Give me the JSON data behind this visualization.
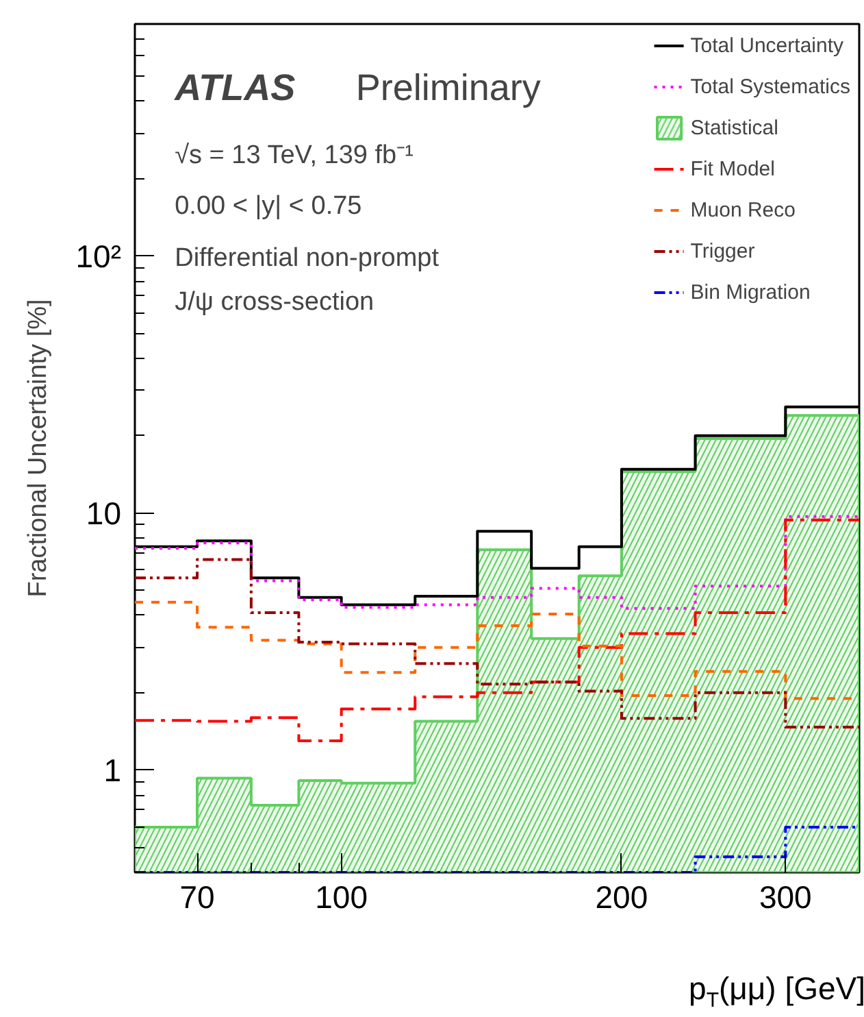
{
  "chart_data": {
    "type": "histogram",
    "xlabel": "p$_{T}$(μμ) [GeV]",
    "ylabel": "Fractional Uncertainty [%]",
    "annotations": [
      "ATLAS",
      "Preliminary",
      "√s = 13 TeV, 139 fb⁻¹",
      "0.00 < |y| < 0.75",
      "Differential non-prompt",
      "J/ψ cross-section"
    ],
    "bins": [
      60,
      70,
      80,
      90,
      100,
      120,
      140,
      160,
      180,
      200,
      240,
      300,
      360
    ],
    "log": "xy",
    "xlim": [
      60,
      360
    ],
    "ylim": [
      0.4,
      800
    ],
    "xticks": [
      70,
      {
        "value": 80,
        "label": null
      },
      {
        "value": 90,
        "label": null
      },
      100,
      200,
      300
    ],
    "yticks": [
      1,
      10,
      {
        "value": 100,
        "label": "10²"
      }
    ],
    "grid": false,
    "legend": "top right",
    "series": [
      {
        "name": "Total Uncertainty",
        "color": "#000000",
        "line_style": "solid",
        "values": [
          7.4,
          7.8,
          5.6,
          4.7,
          4.4,
          4.75,
          8.5,
          6.1,
          7.4,
          14.8,
          20,
          25.9
        ]
      },
      {
        "name": "Total Systematics",
        "color": "#ff00ff",
        "line_style": "dotted",
        "values": [
          7.3,
          7.65,
          5.45,
          4.6,
          4.3,
          4.4,
          4.7,
          5.1,
          4.7,
          4.26,
          5.2,
          9.7
        ]
      },
      {
        "name": "Statistical",
        "color": "#5fcf5f",
        "values": [
          0.6,
          0.93,
          0.73,
          0.91,
          0.89,
          1.55,
          7.2,
          3.25,
          5.7,
          14.5,
          19.5,
          24
        ]
      },
      {
        "name": "Fit Model",
        "color": "#ff0000",
        "line_style": "dashdot",
        "values": [
          1.56,
          1.55,
          1.6,
          1.3,
          1.73,
          1.93,
          2.0,
          2.2,
          3.0,
          3.4,
          4.1,
          9.4
        ]
      },
      {
        "name": "Muon Reco",
        "color": "#ff6600",
        "line_style": "dashed",
        "values": [
          4.5,
          3.6,
          3.2,
          3.1,
          2.4,
          3.0,
          3.65,
          4.05,
          3.04,
          1.95,
          2.42,
          1.9
        ]
      },
      {
        "name": "Trigger",
        "color": "#990000",
        "line_style": "dashdotdot",
        "values": [
          5.6,
          6.6,
          4.1,
          3.15,
          3.1,
          2.6,
          2.16,
          2.2,
          2.03,
          1.59,
          2.0,
          1.47
        ]
      },
      {
        "name": "Bin Migration",
        "color": "#0000ff",
        "line_style": "dashdotdot",
        "values": [
          null,
          null,
          null,
          null,
          null,
          null,
          null,
          null,
          null,
          null,
          0.46,
          0.6
        ]
      }
    ]
  }
}
